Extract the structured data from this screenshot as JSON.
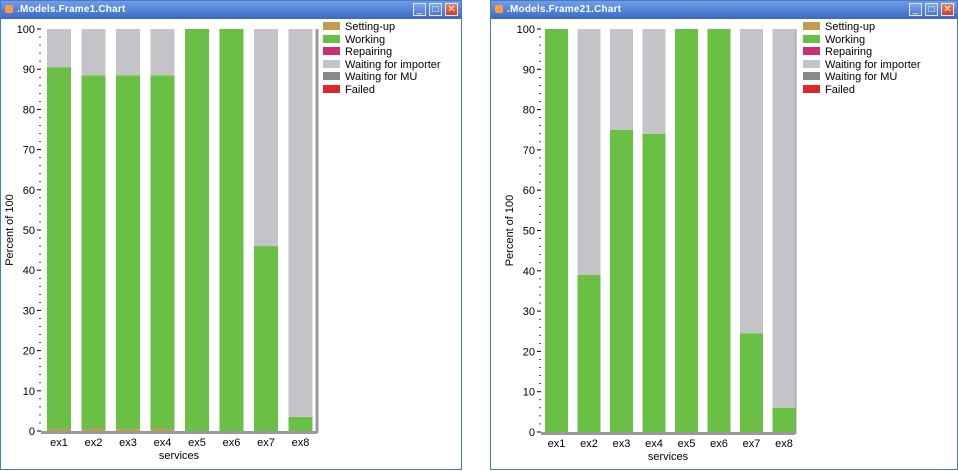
{
  "windows": [
    {
      "title": ".Models.Frame1.Chart",
      "chart_data": {
        "type": "bar",
        "stacked": true,
        "categories": [
          "ex1",
          "ex2",
          "ex3",
          "ex4",
          "ex5",
          "ex6",
          "ex7",
          "ex8"
        ],
        "xlabel": "services",
        "ylabel": "Percent of 100",
        "ylim": [
          0,
          100
        ],
        "yticks": [
          "0",
          "10",
          "20",
          "30",
          "40",
          "50",
          "60",
          "70",
          "80",
          "90",
          "100"
        ],
        "legend_position": "top-right (outside plot)",
        "series": [
          {
            "name": "Setting-up",
            "color": "#c89a50",
            "values": [
              0.5,
              0.5,
              0.5,
              0.5,
              0,
              0,
              0,
              0
            ]
          },
          {
            "name": "Working",
            "color": "#6abf45",
            "values": [
              90,
              88,
              88,
              88,
              100,
              100,
              46,
              3.5
            ]
          },
          {
            "name": "Repairing",
            "color": "#c8307a",
            "values": [
              0,
              0,
              0,
              0,
              0,
              0,
              0,
              0
            ]
          },
          {
            "name": "Waiting for importer",
            "color": "#c4c4c8",
            "values": [
              9.5,
              11.5,
              11.5,
              11.5,
              0,
              0,
              54,
              96.5
            ]
          },
          {
            "name": "Waiting for MU",
            "color": "#8a8a8a",
            "values": [
              0,
              0,
              0,
              0,
              0,
              0,
              0,
              0
            ]
          },
          {
            "name": "Failed",
            "color": "#e02828",
            "values": [
              0,
              0,
              0,
              0,
              0,
              0,
              0,
              0
            ]
          }
        ]
      }
    },
    {
      "title": ".Models.Frame21.Chart",
      "chart_data": {
        "type": "bar",
        "stacked": true,
        "categories": [
          "ex1",
          "ex2",
          "ex3",
          "ex4",
          "ex5",
          "ex6",
          "ex7",
          "ex8"
        ],
        "xlabel": "services",
        "ylabel": "Percent of 100",
        "ylim": [
          0,
          100
        ],
        "yticks": [
          "0",
          "10",
          "20",
          "30",
          "40",
          "50",
          "60",
          "70",
          "80",
          "90",
          "100"
        ],
        "legend_position": "top-right (outside plot)",
        "series": [
          {
            "name": "Setting-up",
            "color": "#c89a50",
            "values": [
              0,
              0,
              0,
              0,
              0,
              0,
              0,
              0
            ]
          },
          {
            "name": "Working",
            "color": "#6abf45",
            "values": [
              100,
              39,
              75,
              74,
              100,
              100,
              24.5,
              6
            ]
          },
          {
            "name": "Repairing",
            "color": "#c8307a",
            "values": [
              0,
              0,
              0,
              0,
              0,
              0,
              0,
              0
            ]
          },
          {
            "name": "Waiting for importer",
            "color": "#c4c4c8",
            "values": [
              0,
              61,
              25,
              26,
              0,
              0,
              75.5,
              94
            ]
          },
          {
            "name": "Waiting for MU",
            "color": "#8a8a8a",
            "values": [
              0,
              0,
              0,
              0,
              0,
              0,
              0,
              0
            ]
          },
          {
            "name": "Failed",
            "color": "#e02828",
            "values": [
              0,
              0,
              0,
              0,
              0,
              0,
              0,
              0
            ]
          }
        ]
      }
    }
  ]
}
